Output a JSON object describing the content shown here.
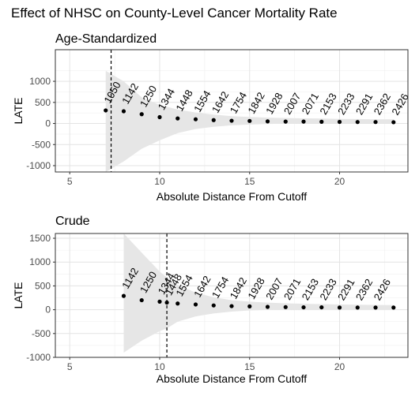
{
  "title": "Effect of NHSC on County-Level Cancer Mortality Rate",
  "chart_data": [
    {
      "type": "scatter",
      "panel_title": "Age-Standardized",
      "xlabel": "Absolute Distance From Cutoff",
      "ylabel": "LATE",
      "xlim": [
        4.2,
        23.8
      ],
      "ylim": [
        -1150,
        1750
      ],
      "x_ticks": [
        "5",
        "10",
        "15",
        "20"
      ],
      "y_ticks": [
        "-1000",
        "-500",
        "0",
        "500",
        "1000"
      ],
      "grid": true,
      "cutoff_line_x": 7.3,
      "x": [
        7,
        8,
        9,
        10,
        11,
        12,
        13,
        14,
        15,
        16,
        17,
        18,
        19,
        20,
        21,
        22,
        23
      ],
      "late": [
        310,
        290,
        220,
        150,
        120,
        100,
        80,
        65,
        60,
        50,
        45,
        45,
        40,
        38,
        35,
        35,
        30
      ],
      "ci_upper": [
        1250,
        1000,
        620,
        440,
        330,
        260,
        210,
        175,
        155,
        140,
        130,
        122,
        116,
        110,
        105,
        100,
        97
      ],
      "ci_lower": [
        -1150,
        -900,
        -600,
        -400,
        -230,
        -130,
        -80,
        -45,
        -25,
        -10,
        -5,
        0,
        0,
        2,
        2,
        3,
        3
      ],
      "n_labels": [
        "1050",
        "1142",
        "1250",
        "1344",
        "1448",
        "1554",
        "1642",
        "1754",
        "1842",
        "1928",
        "2007",
        "2071",
        "2153",
        "2233",
        "2291",
        "2362",
        "2426"
      ]
    },
    {
      "type": "scatter",
      "panel_title": "Crude",
      "xlabel": "Absolute Distance From Cutoff",
      "ylabel": "LATE",
      "xlim": [
        4.2,
        23.8
      ],
      "ylim": [
        -1000,
        1600
      ],
      "x_ticks": [
        "5",
        "10",
        "15",
        "20"
      ],
      "y_ticks": [
        "-1000",
        "-500",
        "0",
        "500",
        "1000",
        "1500"
      ],
      "grid": true,
      "cutoff_line_x": 10.4,
      "x": [
        8,
        9,
        10,
        10.4,
        11,
        12,
        13,
        14,
        15,
        16,
        17,
        18,
        19,
        20,
        21,
        22,
        23
      ],
      "late": [
        290,
        200,
        170,
        150,
        130,
        110,
        90,
        75,
        70,
        60,
        55,
        50,
        50,
        45,
        45,
        45,
        45
      ],
      "ci_upper": [
        1600,
        1200,
        800,
        680,
        520,
        360,
        260,
        200,
        170,
        150,
        135,
        125,
        118,
        110,
        105,
        100,
        98
      ],
      "ci_lower": [
        -900,
        -650,
        -450,
        -390,
        -250,
        -140,
        -80,
        -40,
        -15,
        -5,
        0,
        2,
        5,
        5,
        5,
        8,
        8
      ],
      "n_labels": [
        "1142",
        "1250",
        "1344",
        "1448",
        "1554",
        "1642",
        "1754",
        "1842",
        "1928",
        "2007",
        "2071",
        "2153",
        "2233",
        "2291",
        "2362",
        "2426",
        ""
      ]
    }
  ]
}
